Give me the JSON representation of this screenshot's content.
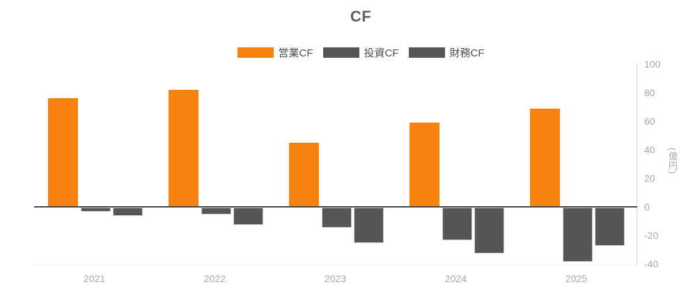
{
  "title": "CF",
  "legend": {
    "items": [
      {
        "key": "operating-cf",
        "label": "営業CF",
        "color": "#f7820d",
        "bordered": false
      },
      {
        "key": "investing-cf",
        "label": "投資CF",
        "color": "#565656",
        "bordered": true
      },
      {
        "key": "financing-cf",
        "label": "財務CF",
        "color": "#565656",
        "bordered": true
      }
    ]
  },
  "y_axis": {
    "unit_label": "(億円)",
    "tick_labels": [
      "100",
      "80",
      "60",
      "40",
      "20",
      "0",
      "-20",
      "-40"
    ],
    "min": -40,
    "max": 100
  },
  "chart_data": {
    "type": "bar",
    "title": "CF",
    "categories": [
      "2021",
      "2022",
      "2023",
      "2024",
      "2025"
    ],
    "series": [
      {
        "key": "operating-cf",
        "name": "営業CF",
        "color": "#f7820d",
        "bordered": false,
        "values": [
          76,
          82,
          45,
          59,
          69
        ]
      },
      {
        "key": "investing-cf",
        "name": "投資CF",
        "color": "#565656",
        "bordered": true,
        "values": [
          -3,
          -5,
          -14,
          -23,
          -38
        ]
      },
      {
        "key": "financing-cf",
        "name": "財務CF",
        "color": "#565656",
        "bordered": true,
        "values": [
          -6,
          -12,
          -25,
          -32,
          -27
        ]
      }
    ],
    "xlabel": "",
    "ylabel": "(億円)",
    "ylim": [
      -40,
      100
    ],
    "grid": false,
    "legend_position": "top",
    "note_series_order_fix": ""
  }
}
